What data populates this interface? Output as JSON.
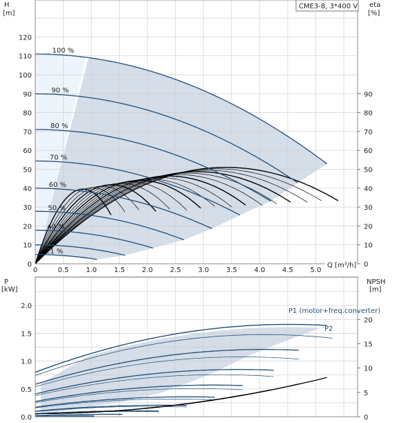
{
  "chart_data": {
    "title": "CME3-8, 3*400 V",
    "top_chart": {
      "type": "line",
      "y_left_label": "H",
      "y_left_unit": "[m]",
      "y_right_label": "eta",
      "y_right_unit": "[%]",
      "x_label": "Q [m³/h]",
      "xlim": [
        0,
        5.5
      ],
      "ylim_left": [
        0,
        130
      ],
      "x_ticks": [
        "0",
        "0.5",
        "1.0",
        "1.5",
        "2.0",
        "2.5",
        "3.0",
        "3.5",
        "4.0",
        "4.5",
        "5.0"
      ],
      "y_left_ticks": [
        "0",
        "10",
        "20",
        "30",
        "40",
        "50",
        "60",
        "70",
        "80",
        "90",
        "100",
        "110",
        "120"
      ],
      "y_right_ticks": [
        "0",
        "10",
        "20",
        "30",
        "40",
        "50",
        "60",
        "70",
        "80",
        "90"
      ],
      "speed_curves": [
        {
          "label": "100 %",
          "speed": 1.0,
          "qmax": 5.2
        },
        {
          "label": "90 %",
          "speed": 0.9,
          "qmax": 4.68
        },
        {
          "label": "80 %",
          "speed": 0.8,
          "qmax": 4.2
        },
        {
          "label": "70 %",
          "speed": 0.7,
          "qmax": 3.65
        },
        {
          "label": "60 %",
          "speed": 0.6,
          "qmax": 3.15
        },
        {
          "label": "50 %",
          "speed": 0.5,
          "qmax": 2.65
        },
        {
          "label": "40 %",
          "speed": 0.4,
          "qmax": 2.1
        },
        {
          "label": "",
          "speed": 0.3,
          "qmax": 1.6
        },
        {
          "label": "21 %",
          "speed": 0.21,
          "qmax": 1.1
        }
      ],
      "head_model": {
        "h0": 111,
        "a": 2.15
      }
    },
    "bottom_chart": {
      "type": "line",
      "y_left_label": "P",
      "y_left_unit": "[kW]",
      "y_right_label": "NPSH",
      "y_right_unit": "[m]",
      "xlim": [
        0,
        5.5
      ],
      "ylim_left": [
        0,
        2.0
      ],
      "y_left_ticks": [
        "0.0",
        "0.5",
        "1.0",
        "1.5",
        "2.0"
      ],
      "y_right_ticks": [
        "0",
        "5",
        "10",
        "15",
        "20"
      ],
      "legend": [
        "P1 (motor+freq.converter)",
        "P2"
      ]
    }
  },
  "colors": {
    "curve_blue": "#1f4e79",
    "region_fill": "#d5dde8",
    "region_light": "#eef4fb",
    "grid": "#cfcfcf",
    "black": "#000000"
  }
}
